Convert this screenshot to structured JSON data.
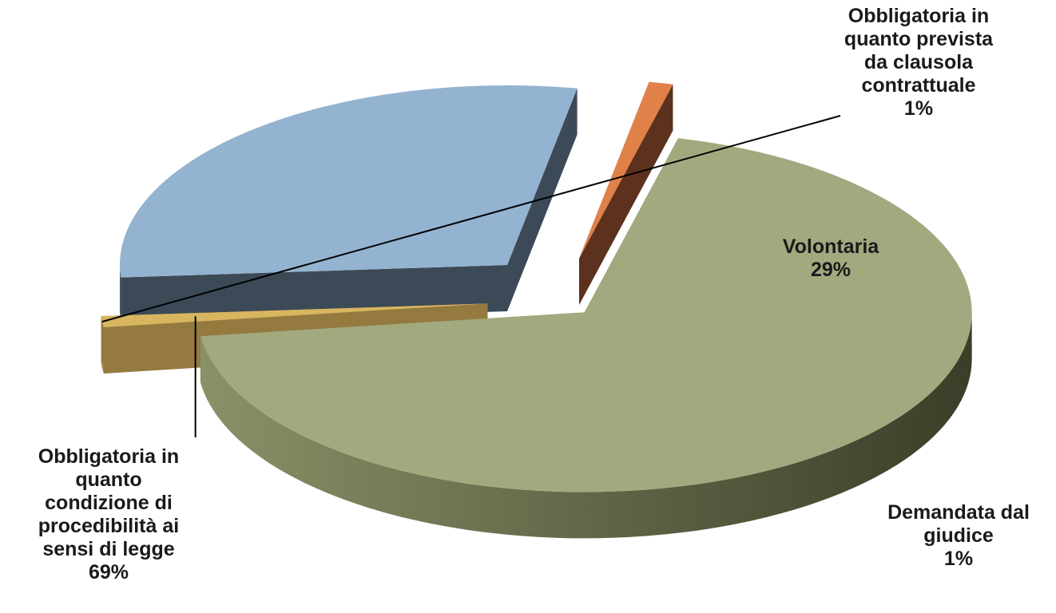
{
  "chart_data": {
    "type": "pie",
    "style": "3d-exploded",
    "legend": "none",
    "slices": [
      {
        "name_lines": [
          "Obbligatoria in",
          "quanto",
          "condizione di",
          "procedibilità ai",
          "sensi di legge"
        ],
        "value": 69,
        "value_label": "69%",
        "color_top": "#a3a97e",
        "color_side": "#6b7152"
      },
      {
        "name_lines": [
          "Obbligatoria in",
          "quanto prevista",
          "da clausola",
          "contrattuale"
        ],
        "value": 1,
        "value_label": "1%",
        "color_top": "#d8b660",
        "color_side": "#957a3f"
      },
      {
        "name_lines": [
          "Volontaria"
        ],
        "value": 29,
        "value_label": "29%",
        "color_top": "#93b3d0",
        "color_side": "#3c4a58"
      },
      {
        "name_lines": [
          "Demandata dal",
          "giudice"
        ],
        "value": 1,
        "value_label": "1%",
        "color_top": "#e0814a",
        "color_side": "#5c311d"
      }
    ]
  }
}
